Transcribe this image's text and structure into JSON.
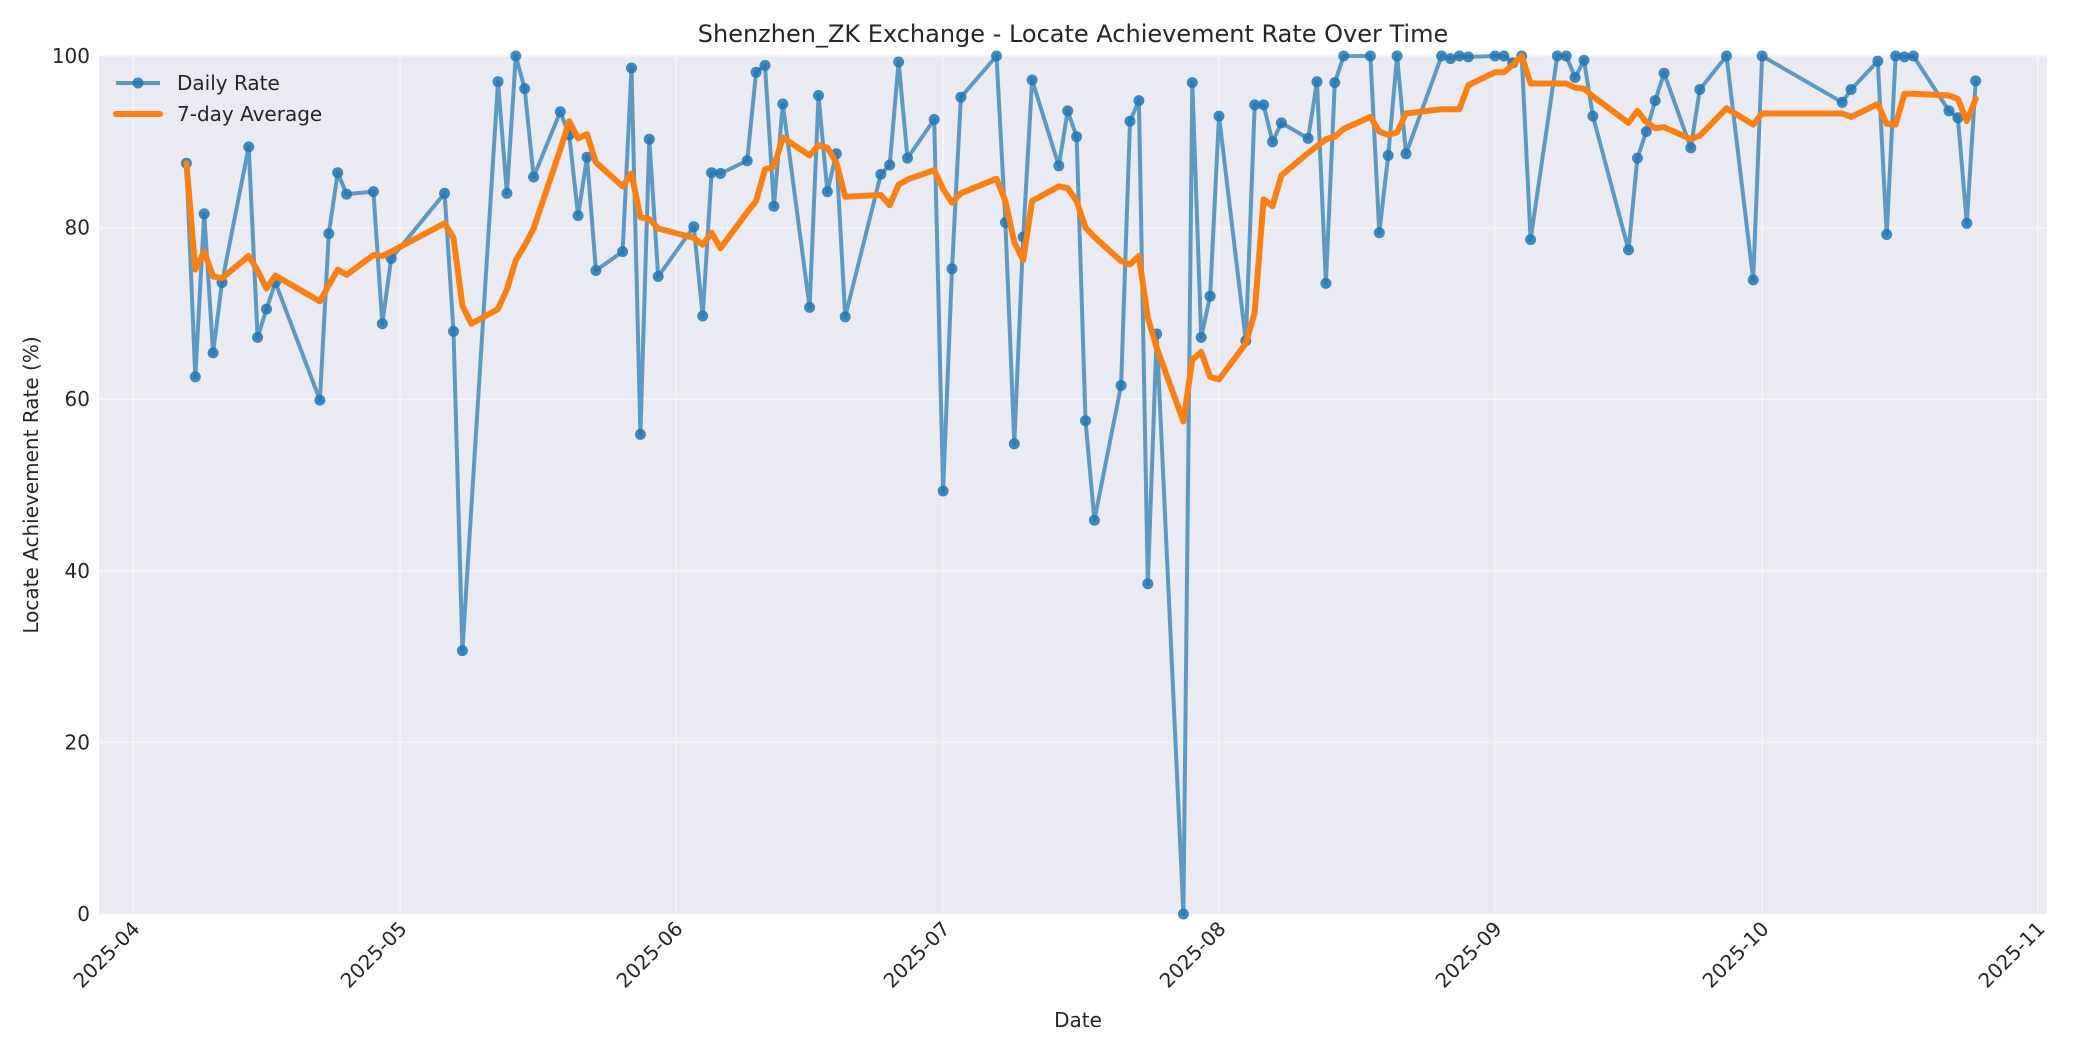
{
  "chart_data": {
    "type": "line",
    "title": "Shenzhen_ZK Exchange - Locate Achievement Rate Over Time",
    "xlabel": "Date",
    "ylabel": "Locate Achievement Rate (%)",
    "ylim": [
      0,
      100
    ],
    "xlim": [
      "2025-03-28",
      "2025-11-02"
    ],
    "x_ticks": [
      "2025-04",
      "2025-05",
      "2025-06",
      "2025-07",
      "2025-08",
      "2025-09",
      "2025-10",
      "2025-11"
    ],
    "y_ticks": [
      0,
      20,
      40,
      60,
      80,
      100
    ],
    "grid": true,
    "legend_position": "upper left",
    "colors": {
      "daily": "#1f77b4",
      "average": "#ff7f0e",
      "plot_bg": "#eaeaf2",
      "grid": "#f5f5f8"
    },
    "legend": [
      "Daily Rate",
      "7-day Average"
    ],
    "series": [
      {
        "name": "Daily Rate",
        "marker": "o",
        "points": [
          [
            "2025-04-07",
            87.5
          ],
          [
            "2025-04-08",
            62.6
          ],
          [
            "2025-04-09",
            81.6
          ],
          [
            "2025-04-10",
            65.4
          ],
          [
            "2025-04-11",
            73.6
          ],
          [
            "2025-04-14",
            89.4
          ],
          [
            "2025-04-15",
            67.2
          ],
          [
            "2025-04-16",
            70.5
          ],
          [
            "2025-04-17",
            73.6
          ],
          [
            "2025-04-22",
            59.9
          ],
          [
            "2025-04-23",
            79.3
          ],
          [
            "2025-04-24",
            86.4
          ],
          [
            "2025-04-25",
            83.9
          ],
          [
            "2025-04-28",
            84.2
          ],
          [
            "2025-04-29",
            68.8
          ],
          [
            "2025-04-30",
            76.4
          ],
          [
            "2025-05-06",
            84.0
          ],
          [
            "2025-05-07",
            67.9
          ],
          [
            "2025-05-08",
            30.7
          ],
          [
            "2025-05-12",
            97.0
          ],
          [
            "2025-05-13",
            84.0
          ],
          [
            "2025-05-14",
            100.0
          ],
          [
            "2025-05-15",
            96.2
          ],
          [
            "2025-05-16",
            85.9
          ],
          [
            "2025-05-19",
            93.5
          ],
          [
            "2025-05-20",
            90.8
          ],
          [
            "2025-05-21",
            81.4
          ],
          [
            "2025-05-22",
            88.2
          ],
          [
            "2025-05-23",
            75.0
          ],
          [
            "2025-05-26",
            77.2
          ],
          [
            "2025-05-27",
            98.6
          ],
          [
            "2025-05-28",
            55.9
          ],
          [
            "2025-05-29",
            90.3
          ],
          [
            "2025-05-30",
            74.3
          ],
          [
            "2025-06-03",
            80.1
          ],
          [
            "2025-06-04",
            69.7
          ],
          [
            "2025-06-05",
            86.4
          ],
          [
            "2025-06-06",
            86.3
          ],
          [
            "2025-06-09",
            87.8
          ],
          [
            "2025-06-10",
            98.1
          ],
          [
            "2025-06-11",
            98.9
          ],
          [
            "2025-06-12",
            82.5
          ],
          [
            "2025-06-13",
            94.4
          ],
          [
            "2025-06-16",
            70.7
          ],
          [
            "2025-06-17",
            95.4
          ],
          [
            "2025-06-18",
            84.2
          ],
          [
            "2025-06-19",
            88.6
          ],
          [
            "2025-06-20",
            69.6
          ],
          [
            "2025-06-24",
            86.2
          ],
          [
            "2025-06-25",
            87.3
          ],
          [
            "2025-06-26",
            99.3
          ],
          [
            "2025-06-27",
            88.1
          ],
          [
            "2025-06-30",
            92.6
          ],
          [
            "2025-07-01",
            49.3
          ],
          [
            "2025-07-02",
            75.2
          ],
          [
            "2025-07-03",
            95.2
          ],
          [
            "2025-07-07",
            100.0
          ],
          [
            "2025-07-08",
            80.6
          ],
          [
            "2025-07-09",
            54.8
          ],
          [
            "2025-07-10",
            78.9
          ],
          [
            "2025-07-11",
            97.2
          ],
          [
            "2025-07-14",
            87.2
          ],
          [
            "2025-07-15",
            93.6
          ],
          [
            "2025-07-16",
            90.6
          ],
          [
            "2025-07-17",
            57.5
          ],
          [
            "2025-07-18",
            45.9
          ],
          [
            "2025-07-21",
            61.6
          ],
          [
            "2025-07-22",
            92.4
          ],
          [
            "2025-07-23",
            94.8
          ],
          [
            "2025-07-24",
            38.5
          ],
          [
            "2025-07-25",
            67.6
          ],
          [
            "2025-07-28",
            0.0
          ],
          [
            "2025-07-29",
            96.9
          ],
          [
            "2025-07-30",
            67.2
          ],
          [
            "2025-07-31",
            72.0
          ],
          [
            "2025-08-01",
            93.0
          ],
          [
            "2025-08-04",
            66.8
          ],
          [
            "2025-08-05",
            94.3
          ],
          [
            "2025-08-06",
            94.3
          ],
          [
            "2025-08-07",
            90.0
          ],
          [
            "2025-08-08",
            92.2
          ],
          [
            "2025-08-11",
            90.4
          ],
          [
            "2025-08-12",
            97.0
          ],
          [
            "2025-08-13",
            73.5
          ],
          [
            "2025-08-14",
            96.9
          ],
          [
            "2025-08-15",
            100.0
          ],
          [
            "2025-08-18",
            100.0
          ],
          [
            "2025-08-19",
            79.4
          ],
          [
            "2025-08-20",
            88.4
          ],
          [
            "2025-08-21",
            100.0
          ],
          [
            "2025-08-22",
            88.6
          ],
          [
            "2025-08-26",
            100.0
          ],
          [
            "2025-08-27",
            99.7
          ],
          [
            "2025-08-28",
            100.0
          ],
          [
            "2025-08-29",
            99.9
          ],
          [
            "2025-09-01",
            100.0
          ],
          [
            "2025-09-02",
            100.0
          ],
          [
            "2025-09-03",
            99.2
          ],
          [
            "2025-09-04",
            100.0
          ],
          [
            "2025-09-05",
            78.6
          ],
          [
            "2025-09-08",
            100.0
          ],
          [
            "2025-09-09",
            100.0
          ],
          [
            "2025-09-10",
            97.5
          ],
          [
            "2025-09-11",
            99.5
          ],
          [
            "2025-09-12",
            93.0
          ],
          [
            "2025-09-16",
            77.4
          ],
          [
            "2025-09-17",
            88.1
          ],
          [
            "2025-09-18",
            91.2
          ],
          [
            "2025-09-19",
            94.8
          ],
          [
            "2025-09-20",
            98.0
          ],
          [
            "2025-09-23",
            89.3
          ],
          [
            "2025-09-24",
            96.1
          ],
          [
            "2025-09-27",
            100.0
          ],
          [
            "2025-09-30",
            73.9
          ],
          [
            "2025-10-01",
            100.0
          ],
          [
            "2025-10-10",
            94.6
          ],
          [
            "2025-10-11",
            96.1
          ],
          [
            "2025-10-14",
            99.4
          ],
          [
            "2025-10-15",
            79.2
          ],
          [
            "2025-10-16",
            100.0
          ],
          [
            "2025-10-17",
            99.9
          ],
          [
            "2025-10-18",
            100.0
          ],
          [
            "2025-10-22",
            93.6
          ],
          [
            "2025-10-23",
            92.8
          ],
          [
            "2025-10-24",
            80.5
          ],
          [
            "2025-10-25",
            97.1
          ]
        ]
      },
      {
        "name": "7-day Average",
        "marker": "none",
        "points": [
          [
            "2025-04-07",
            87.5
          ],
          [
            "2025-04-08",
            75.1
          ],
          [
            "2025-04-09",
            77.2
          ],
          [
            "2025-04-10",
            74.3
          ],
          [
            "2025-04-11",
            74.1
          ],
          [
            "2025-04-14",
            76.7
          ],
          [
            "2025-04-15",
            75.0
          ],
          [
            "2025-04-16",
            72.9
          ],
          [
            "2025-04-17",
            74.4
          ],
          [
            "2025-04-22",
            71.4
          ],
          [
            "2025-04-23",
            73.3
          ],
          [
            "2025-04-24",
            75.1
          ],
          [
            "2025-04-25",
            74.5
          ],
          [
            "2025-04-28",
            76.8
          ],
          [
            "2025-04-29",
            76.7
          ],
          [
            "2025-04-30",
            77.2
          ],
          [
            "2025-05-06",
            80.5
          ],
          [
            "2025-05-07",
            78.8
          ],
          [
            "2025-05-08",
            70.9
          ],
          [
            "2025-05-09",
            68.8
          ],
          [
            "2025-05-12",
            70.5
          ],
          [
            "2025-05-13",
            72.8
          ],
          [
            "2025-05-14",
            76.2
          ],
          [
            "2025-05-15",
            77.9
          ],
          [
            "2025-05-16",
            79.9
          ],
          [
            "2025-05-19",
            89.1
          ],
          [
            "2025-05-20",
            92.4
          ],
          [
            "2025-05-21",
            90.4
          ],
          [
            "2025-05-22",
            90.9
          ],
          [
            "2025-05-23",
            87.6
          ],
          [
            "2025-05-26",
            84.8
          ],
          [
            "2025-05-27",
            86.3
          ],
          [
            "2025-05-28",
            81.2
          ],
          [
            "2025-05-29",
            81.0
          ],
          [
            "2025-05-30",
            79.9
          ],
          [
            "2025-06-03",
            78.8
          ],
          [
            "2025-06-04",
            78.0
          ],
          [
            "2025-06-05",
            79.4
          ],
          [
            "2025-06-06",
            77.6
          ],
          [
            "2025-06-09",
            81.8
          ],
          [
            "2025-06-10",
            83.1
          ],
          [
            "2025-06-11",
            86.8
          ],
          [
            "2025-06-12",
            87.1
          ],
          [
            "2025-06-13",
            90.5
          ],
          [
            "2025-06-16",
            88.4
          ],
          [
            "2025-06-17",
            89.6
          ],
          [
            "2025-06-18",
            89.3
          ],
          [
            "2025-06-19",
            87.6
          ],
          [
            "2025-06-20",
            83.6
          ],
          [
            "2025-06-24",
            83.8
          ],
          [
            "2025-06-25",
            82.6
          ],
          [
            "2025-06-26",
            85.0
          ],
          [
            "2025-06-27",
            85.6
          ],
          [
            "2025-06-30",
            86.7
          ],
          [
            "2025-07-01",
            84.5
          ],
          [
            "2025-07-02",
            82.9
          ],
          [
            "2025-07-03",
            84.0
          ],
          [
            "2025-07-07",
            85.7
          ],
          [
            "2025-07-08",
            83.1
          ],
          [
            "2025-07-09",
            78.3
          ],
          [
            "2025-07-10",
            76.2
          ],
          [
            "2025-07-11",
            83.1
          ],
          [
            "2025-07-14",
            84.8
          ],
          [
            "2025-07-15",
            84.6
          ],
          [
            "2025-07-16",
            83.1
          ],
          [
            "2025-07-17",
            80.0
          ],
          [
            "2025-07-18",
            78.9
          ],
          [
            "2025-07-21",
            76.1
          ],
          [
            "2025-07-22",
            75.7
          ],
          [
            "2025-07-23",
            76.7
          ],
          [
            "2025-07-24",
            69.5
          ],
          [
            "2025-07-25",
            66.0
          ],
          [
            "2025-07-28",
            57.4
          ],
          [
            "2025-07-29",
            64.6
          ],
          [
            "2025-07-30",
            65.5
          ],
          [
            "2025-07-31",
            62.6
          ],
          [
            "2025-08-01",
            62.3
          ],
          [
            "2025-08-04",
            66.5
          ],
          [
            "2025-08-05",
            70.1
          ],
          [
            "2025-08-06",
            83.3
          ],
          [
            "2025-08-07",
            82.5
          ],
          [
            "2025-08-08",
            86.1
          ],
          [
            "2025-08-11",
            88.7
          ],
          [
            "2025-08-12",
            89.5
          ],
          [
            "2025-08-13",
            90.3
          ],
          [
            "2025-08-14",
            90.6
          ],
          [
            "2025-08-15",
            91.5
          ],
          [
            "2025-08-18",
            92.9
          ],
          [
            "2025-08-19",
            91.2
          ],
          [
            "2025-08-20",
            90.8
          ],
          [
            "2025-08-21",
            91.1
          ],
          [
            "2025-08-22",
            93.3
          ],
          [
            "2025-08-26",
            93.8
          ],
          [
            "2025-08-27",
            93.8
          ],
          [
            "2025-08-28",
            93.8
          ],
          [
            "2025-08-29",
            96.6
          ],
          [
            "2025-09-01",
            98.1
          ],
          [
            "2025-09-02",
            98.1
          ],
          [
            "2025-09-03",
            99.0
          ],
          [
            "2025-09-04",
            100.0
          ],
          [
            "2025-09-05",
            96.8
          ],
          [
            "2025-09-08",
            96.8
          ],
          [
            "2025-09-09",
            96.8
          ],
          [
            "2025-09-10",
            96.3
          ],
          [
            "2025-09-11",
            96.2
          ],
          [
            "2025-09-12",
            95.3
          ],
          [
            "2025-09-16",
            92.2
          ],
          [
            "2025-09-17",
            93.6
          ],
          [
            "2025-09-18",
            92.3
          ],
          [
            "2025-09-19",
            91.6
          ],
          [
            "2025-09-20",
            91.7
          ],
          [
            "2025-09-23",
            90.3
          ],
          [
            "2025-09-24",
            90.7
          ],
          [
            "2025-09-27",
            93.9
          ],
          [
            "2025-09-30",
            92.0
          ],
          [
            "2025-10-01",
            93.3
          ],
          [
            "2025-10-10",
            93.3
          ],
          [
            "2025-10-11",
            92.9
          ],
          [
            "2025-10-14",
            94.4
          ],
          [
            "2025-10-15",
            92.1
          ],
          [
            "2025-10-16",
            92.0
          ],
          [
            "2025-10-17",
            95.6
          ],
          [
            "2025-10-18",
            95.6
          ],
          [
            "2025-10-22",
            95.4
          ],
          [
            "2025-10-23",
            95.0
          ],
          [
            "2025-10-24",
            92.4
          ],
          [
            "2025-10-25",
            95.0
          ]
        ]
      }
    ]
  }
}
